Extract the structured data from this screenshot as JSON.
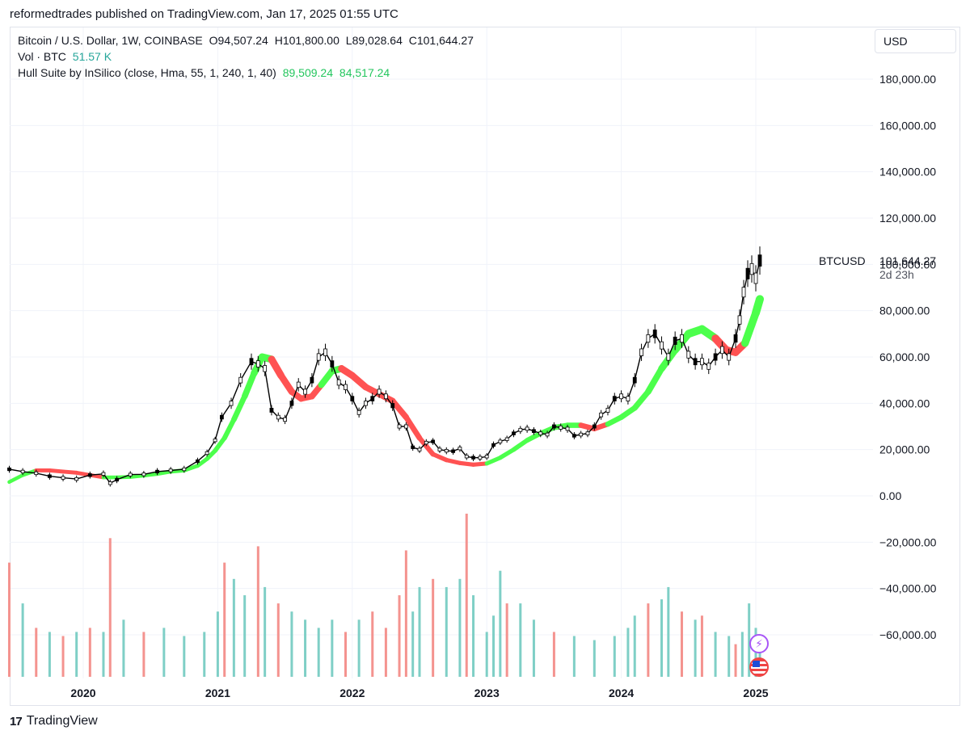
{
  "publisher_line": "reformedtrades published on TradingView.com, Jan 17, 2025 01:55 UTC",
  "legend": {
    "symbol_line": {
      "label": "Bitcoin / U.S. Dollar, 1W, COINBASE",
      "open": "O94,507.24",
      "high": "H101,800.00",
      "low": "L89,028.64",
      "close": "C101,644.27"
    },
    "volume_line": {
      "label": "Vol · BTC",
      "value": "51.57 K"
    },
    "hull_line": {
      "label": "Hull Suite by InSilico (close, Hma, 55, 1, 240, 1, 40)",
      "value1": "89,509.24",
      "value2": "84,517.24"
    }
  },
  "currency": "USD",
  "price_tag": {
    "symbol": "BTCUSD",
    "value": "101,644.27",
    "countdown": "2d 23h"
  },
  "footer": {
    "brand": "TradingView",
    "logo_text": "17"
  },
  "colors": {
    "candle": "#000000",
    "hull_up": "#4cff4c",
    "hull_down": "#ff5252",
    "vol_up": "#7fcfc6",
    "vol_down": "#f4938f",
    "grid": "#f0f3fa",
    "axis_text": "#131722"
  },
  "chart_data": {
    "type": "candlestick",
    "title": "Bitcoin / U.S. Dollar, 1W, COINBASE",
    "ylabel": "USD",
    "ylim": [
      -80000,
      190000
    ],
    "y_ticks": [
      "180,000.00",
      "160,000.00",
      "140,000.00",
      "120,000.00",
      "100,000.00",
      "80,000.00",
      "60,000.00",
      "40,000.00",
      "20,000.00",
      "0.00",
      "−20,000.00",
      "−40,000.00",
      "−60,000.00"
    ],
    "y_tick_values": [
      180000,
      160000,
      140000,
      120000,
      100000,
      80000,
      60000,
      40000,
      20000,
      0,
      -20000,
      -40000,
      -60000
    ],
    "x_labels": [
      "2020",
      "2021",
      "2022",
      "2023",
      "2024",
      "2025"
    ],
    "x_label_years": [
      2020,
      2021,
      2022,
      2023,
      2024,
      2025
    ],
    "x_range": [
      2019.45,
      2025.05
    ],
    "price_series": {
      "name": "BTCUSD weekly close (approx.)",
      "t": [
        2019.45,
        2019.55,
        2019.65,
        2019.75,
        2019.85,
        2019.95,
        2020.05,
        2020.15,
        2020.2,
        2020.25,
        2020.35,
        2020.45,
        2020.55,
        2020.65,
        2020.75,
        2020.85,
        2020.92,
        2020.98,
        2021.03,
        2021.1,
        2021.17,
        2021.25,
        2021.3,
        2021.35,
        2021.4,
        2021.45,
        2021.5,
        2021.55,
        2021.6,
        2021.65,
        2021.7,
        2021.75,
        2021.8,
        2021.85,
        2021.9,
        2021.95,
        2022.0,
        2022.05,
        2022.1,
        2022.15,
        2022.2,
        2022.25,
        2022.3,
        2022.35,
        2022.4,
        2022.45,
        2022.5,
        2022.55,
        2022.6,
        2022.65,
        2022.7,
        2022.75,
        2022.8,
        2022.85,
        2022.9,
        2022.95,
        2023.0,
        2023.05,
        2023.1,
        2023.15,
        2023.2,
        2023.25,
        2023.3,
        2023.35,
        2023.4,
        2023.45,
        2023.5,
        2023.55,
        2023.6,
        2023.65,
        2023.7,
        2023.75,
        2023.8,
        2023.85,
        2023.9,
        2023.95,
        2024.0,
        2024.05,
        2024.1,
        2024.15,
        2024.2,
        2024.25,
        2024.3,
        2024.35,
        2024.4,
        2024.45,
        2024.5,
        2024.55,
        2024.6,
        2024.65,
        2024.7,
        2024.75,
        2024.8,
        2024.85,
        2024.88,
        2024.91,
        2024.94,
        2024.97,
        2025.0,
        2025.03
      ],
      "values": [
        11500,
        10500,
        9800,
        8500,
        7800,
        7300,
        9000,
        9500,
        5500,
        7000,
        9200,
        9300,
        10500,
        11000,
        11500,
        15000,
        18500,
        24000,
        34000,
        40000,
        50000,
        58000,
        57000,
        55000,
        37000,
        34000,
        33000,
        40000,
        48000,
        45000,
        50000,
        60000,
        62000,
        57000,
        49000,
        47000,
        42000,
        36000,
        40000,
        42000,
        45000,
        43000,
        39000,
        30000,
        30000,
        21000,
        20000,
        23000,
        23500,
        20000,
        19500,
        19300,
        20500,
        17000,
        16500,
        16500,
        17000,
        22000,
        23500,
        24500,
        27000,
        28500,
        29000,
        28000,
        27000,
        26500,
        30000,
        29500,
        29000,
        26000,
        26500,
        27000,
        30000,
        35000,
        37000,
        42000,
        43000,
        42000,
        50000,
        62000,
        68000,
        70000,
        65000,
        60000,
        67000,
        68000,
        61000,
        58000,
        58000,
        56000,
        60000,
        63000,
        60000,
        68000,
        76000,
        88000,
        96000,
        98000,
        94000,
        101644
      ]
    },
    "hull_series": {
      "name": "Hull Suite by InSilico",
      "t": [
        2019.45,
        2019.55,
        2019.65,
        2019.75,
        2019.85,
        2019.95,
        2020.05,
        2020.15,
        2020.25,
        2020.35,
        2020.45,
        2020.55,
        2020.65,
        2020.75,
        2020.85,
        2020.92,
        2020.98,
        2021.05,
        2021.12,
        2021.2,
        2021.27,
        2021.33,
        2021.4,
        2021.47,
        2021.55,
        2021.62,
        2021.7,
        2021.77,
        2021.85,
        2021.92,
        2022.0,
        2022.1,
        2022.2,
        2022.3,
        2022.4,
        2022.5,
        2022.6,
        2022.7,
        2022.8,
        2022.9,
        2023.0,
        2023.1,
        2023.2,
        2023.3,
        2023.4,
        2023.5,
        2023.6,
        2023.7,
        2023.8,
        2023.9,
        2024.0,
        2024.1,
        2024.2,
        2024.3,
        2024.4,
        2024.5,
        2024.6,
        2024.7,
        2024.78,
        2024.85,
        2024.92,
        2025.0,
        2025.03
      ],
      "values": [
        6000,
        9000,
        11000,
        11000,
        10500,
        10000,
        9000,
        8000,
        8000,
        8200,
        8800,
        9500,
        10500,
        11000,
        13000,
        16000,
        19500,
        25000,
        33000,
        43000,
        53000,
        60000,
        59000,
        52000,
        45000,
        42000,
        43000,
        48000,
        54000,
        55000,
        52000,
        47000,
        44000,
        41000,
        34000,
        25000,
        18000,
        15500,
        14200,
        13500,
        14000,
        16500,
        20000,
        24000,
        27000,
        29500,
        30500,
        30500,
        29000,
        31000,
        34000,
        38000,
        45000,
        55000,
        63000,
        70000,
        72000,
        68000,
        63000,
        62000,
        66000,
        79000,
        85000
      ],
      "trend": [
        "up",
        "up",
        "down",
        "down",
        "down",
        "down",
        "down",
        "up",
        "up",
        "up",
        "up",
        "up",
        "up",
        "up",
        "up",
        "up",
        "up",
        "up",
        "up",
        "up",
        "up",
        "up",
        "down",
        "down",
        "down",
        "down",
        "down",
        "up",
        "up",
        "down",
        "down",
        "down",
        "down",
        "down",
        "down",
        "down",
        "down",
        "down",
        "down",
        "down",
        "up",
        "up",
        "up",
        "up",
        "up",
        "up",
        "up",
        "down",
        "down",
        "up",
        "up",
        "up",
        "up",
        "up",
        "up",
        "up",
        "up",
        "down",
        "down",
        "down",
        "up",
        "up",
        "up"
      ]
    },
    "volume_series": {
      "name": "Vol · BTC",
      "t": [
        2019.45,
        2019.55,
        2019.65,
        2019.75,
        2019.85,
        2019.95,
        2020.05,
        2020.15,
        2020.2,
        2020.3,
        2020.45,
        2020.6,
        2020.75,
        2020.9,
        2021.0,
        2021.05,
        2021.12,
        2021.2,
        2021.3,
        2021.35,
        2021.45,
        2021.55,
        2021.65,
        2021.75,
        2021.85,
        2021.95,
        2022.05,
        2022.15,
        2022.25,
        2022.35,
        2022.4,
        2022.45,
        2022.5,
        2022.6,
        2022.7,
        2022.8,
        2022.85,
        2022.9,
        2023.0,
        2023.05,
        2023.1,
        2023.15,
        2023.25,
        2023.35,
        2023.5,
        2023.65,
        2023.8,
        2023.95,
        2024.05,
        2024.1,
        2024.2,
        2024.3,
        2024.35,
        2024.45,
        2024.55,
        2024.6,
        2024.7,
        2024.8,
        2024.85,
        2024.9,
        2024.95,
        2025.0,
        2025.03
      ],
      "values": [
        140,
        90,
        60,
        55,
        50,
        55,
        60,
        55,
        170,
        70,
        55,
        60,
        50,
        55,
        80,
        140,
        120,
        100,
        160,
        110,
        90,
        80,
        70,
        60,
        70,
        55,
        70,
        80,
        60,
        100,
        155,
        80,
        110,
        120,
        110,
        120,
        200,
        100,
        55,
        75,
        130,
        90,
        90,
        70,
        55,
        50,
        45,
        50,
        60,
        75,
        90,
        95,
        110,
        80,
        70,
        75,
        55,
        50,
        40,
        55,
        90,
        60,
        40
      ],
      "direction": [
        "down",
        "up",
        "down",
        "up",
        "down",
        "up",
        "down",
        "up",
        "down",
        "up",
        "down",
        "up",
        "up",
        "up",
        "up",
        "down",
        "up",
        "up",
        "down",
        "up",
        "down",
        "up",
        "up",
        "up",
        "up",
        "down",
        "up",
        "down",
        "down",
        "down",
        "down",
        "up",
        "up",
        "down",
        "up",
        "up",
        "down",
        "up",
        "up",
        "up",
        "up",
        "down",
        "up",
        "up",
        "down",
        "up",
        "up",
        "up",
        "up",
        "up",
        "down",
        "up",
        "up",
        "down",
        "up",
        "down",
        "up",
        "up",
        "down",
        "up",
        "up",
        "up",
        "up"
      ]
    }
  }
}
